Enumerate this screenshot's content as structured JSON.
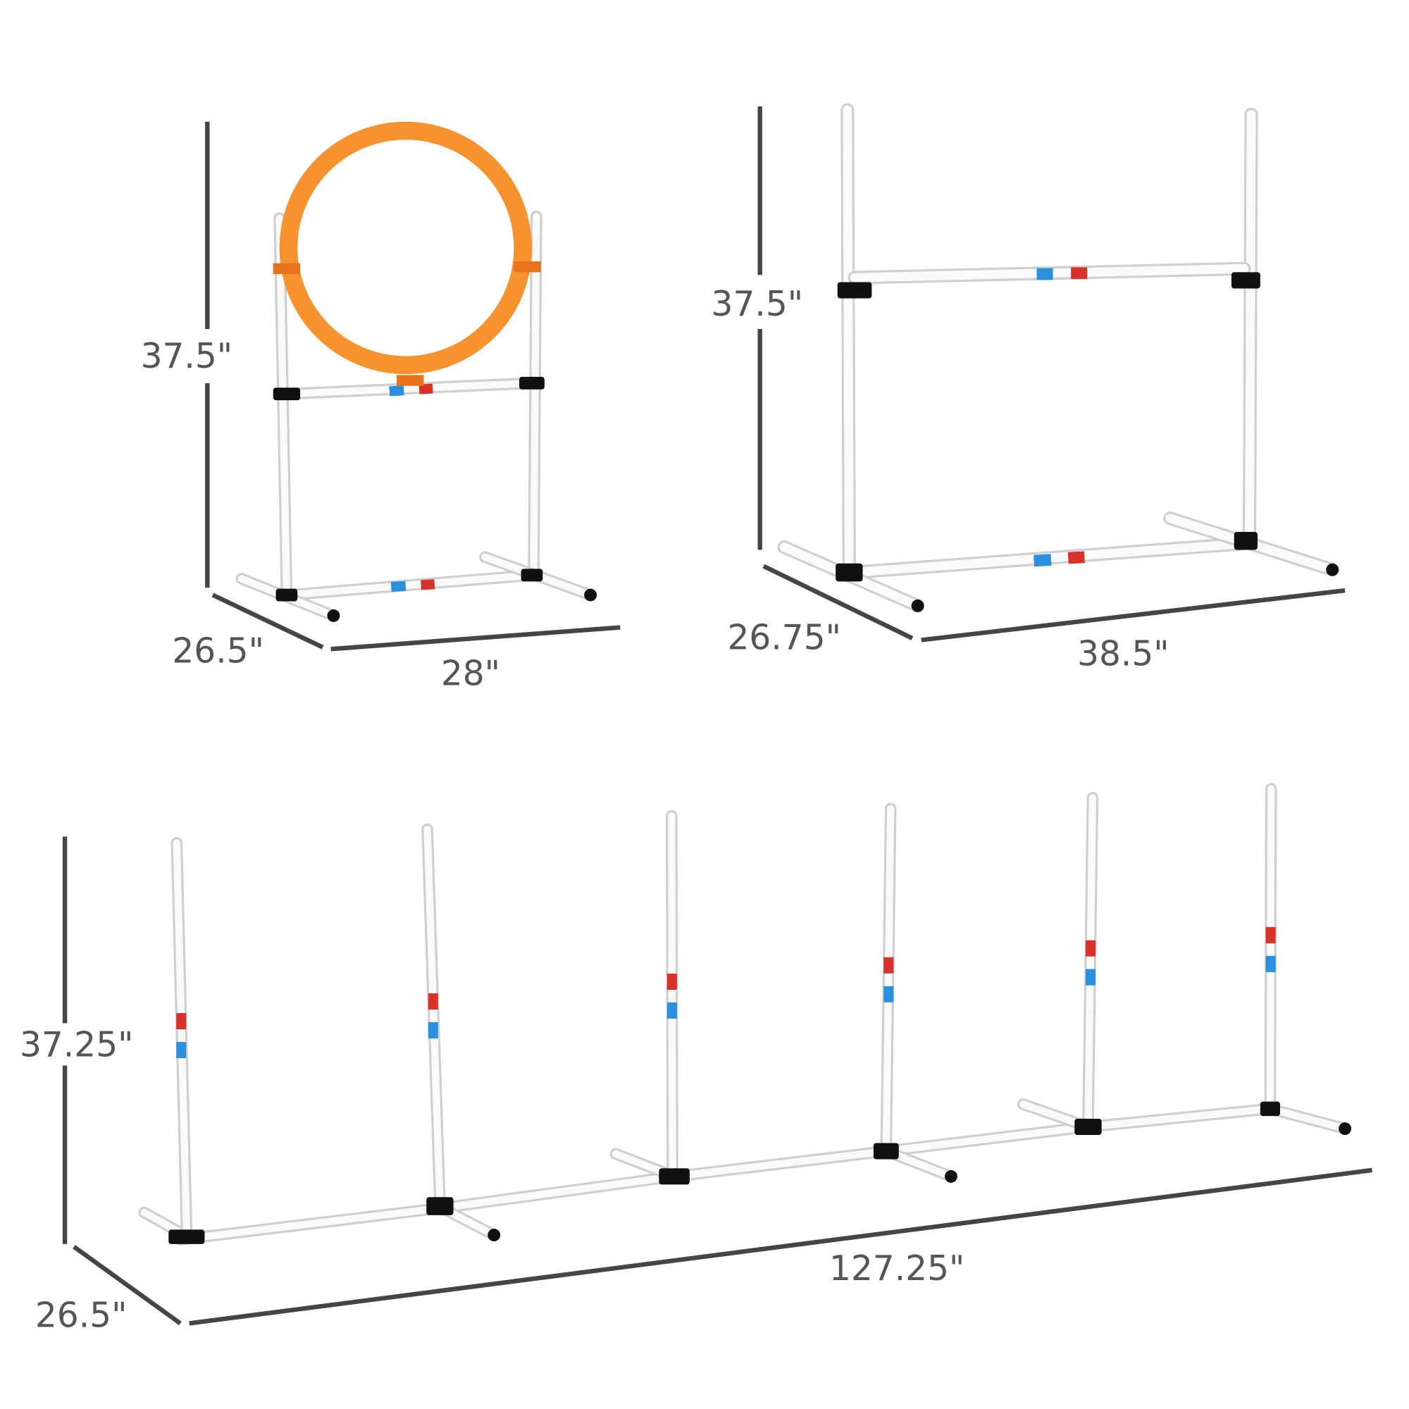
{
  "colors": {
    "hoop": "#f7932e",
    "stripe_red": "#d9322a",
    "stripe_blue": "#2a8fdc",
    "pole": "#ffffff",
    "joint": "#111111",
    "dimension_line": "#454545"
  },
  "hoop_jump": {
    "height": "37.5\"",
    "depth": "26.5\"",
    "width": "28\""
  },
  "bar_jump": {
    "height": "37.5\"",
    "depth": "26.75\"",
    "width": "38.5\""
  },
  "weave_poles": {
    "height": "37.25\"",
    "depth": "26.5\"",
    "length": "127.25\""
  }
}
